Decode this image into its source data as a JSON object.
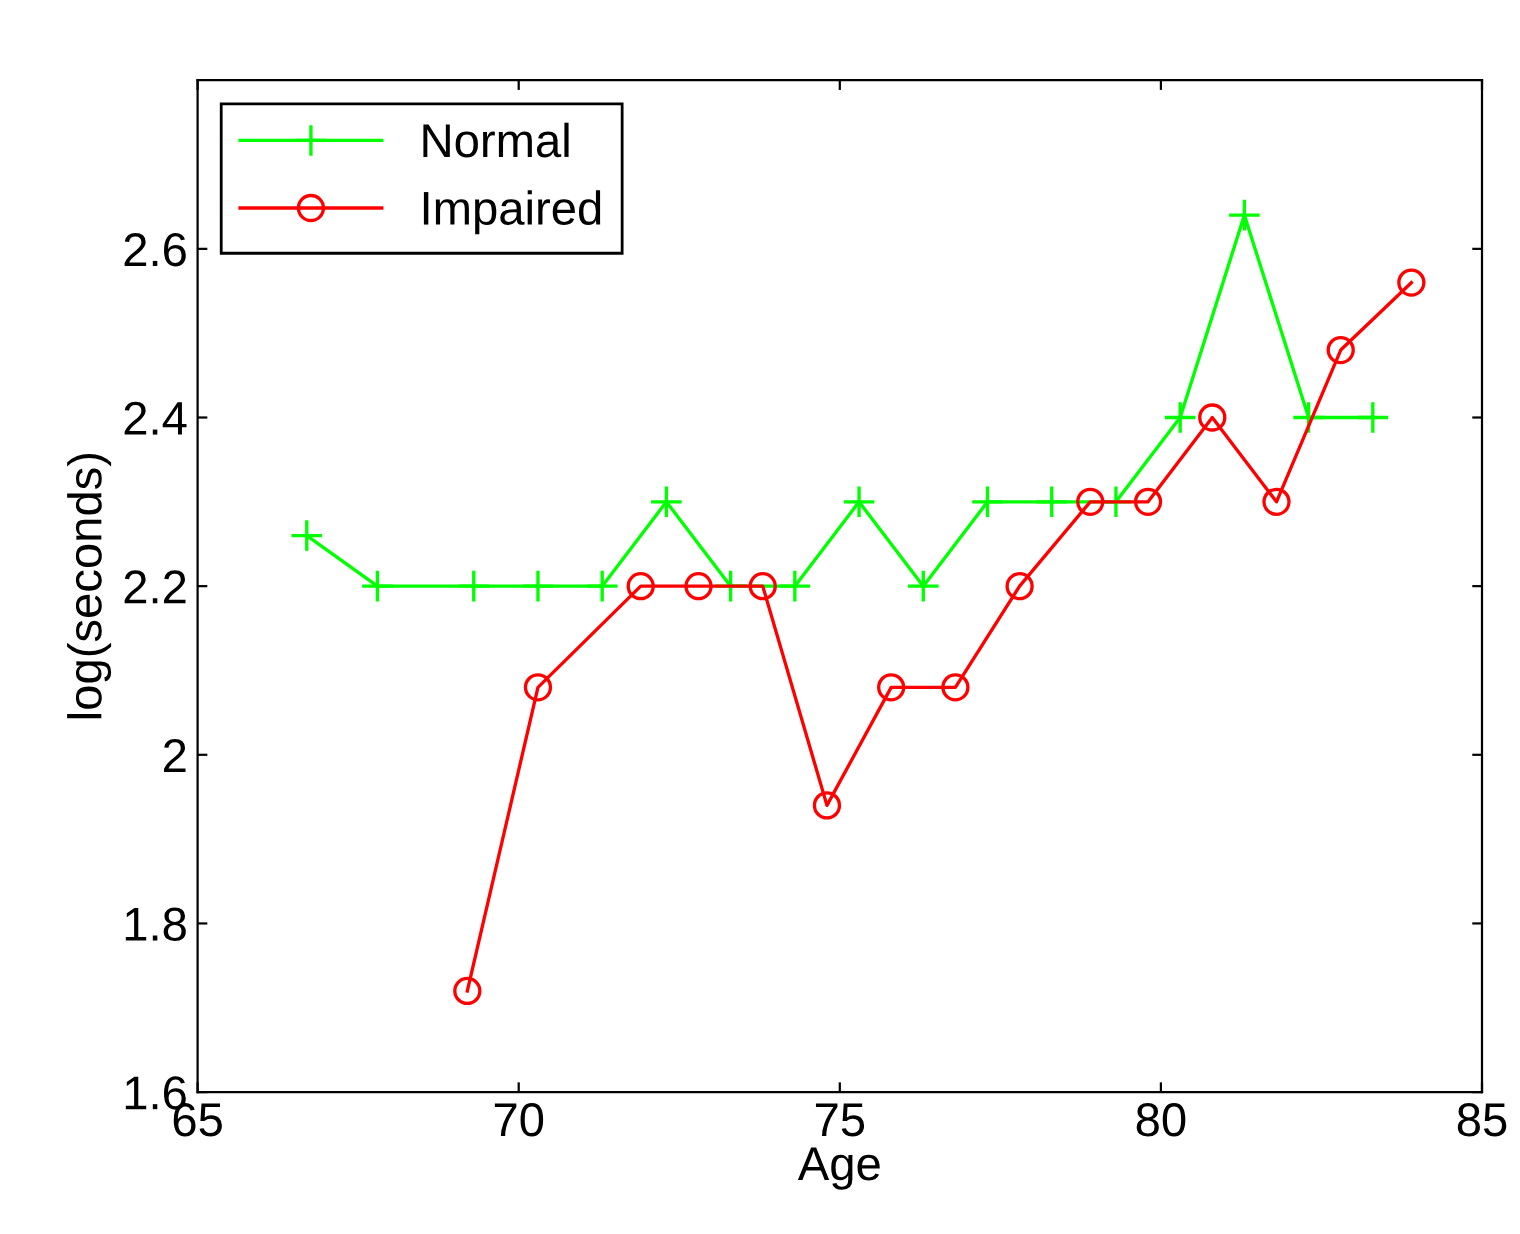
{
  "chart_data": {
    "type": "line",
    "xlabel": "Age",
    "ylabel": "log(seconds)",
    "xlim": [
      65,
      85
    ],
    "xticks": [
      65,
      70,
      75,
      80,
      85
    ],
    "ylim": [
      1.6,
      2.8
    ],
    "yticks": [
      1.6,
      1.8,
      2,
      2.2,
      2.4,
      2.6
    ],
    "grid": false,
    "legend": "top left",
    "series": [
      {
        "name": "Normal",
        "color": "#00ff00",
        "marker": "cross",
        "x": [
          66.7,
          67.8,
          69.3,
          70.3,
          71.3,
          72.3,
          73.3,
          74.3,
          75.3,
          76.3,
          77.3,
          78.3,
          79.3,
          80.3,
          81.3,
          82.3,
          83.3
        ],
        "values": [
          2.26,
          2.2,
          2.2,
          2.2,
          2.2,
          2.3,
          2.2,
          2.2,
          2.3,
          2.2,
          2.3,
          2.3,
          2.3,
          2.4,
          2.64,
          2.4,
          2.4
        ]
      },
      {
        "name": "Impaired",
        "color": "#ff0000",
        "marker": "circle",
        "x": [
          69.2,
          70.3,
          71.9,
          72.8,
          73.8,
          74.8,
          75.8,
          76.8,
          77.8,
          78.9,
          79.8,
          80.8,
          81.8,
          82.8,
          83.9
        ],
        "values": [
          1.72,
          2.08,
          2.2,
          2.2,
          2.2,
          1.94,
          2.08,
          2.08,
          2.2,
          2.3,
          2.3,
          2.4,
          2.3,
          2.48,
          2.56
        ]
      }
    ]
  }
}
